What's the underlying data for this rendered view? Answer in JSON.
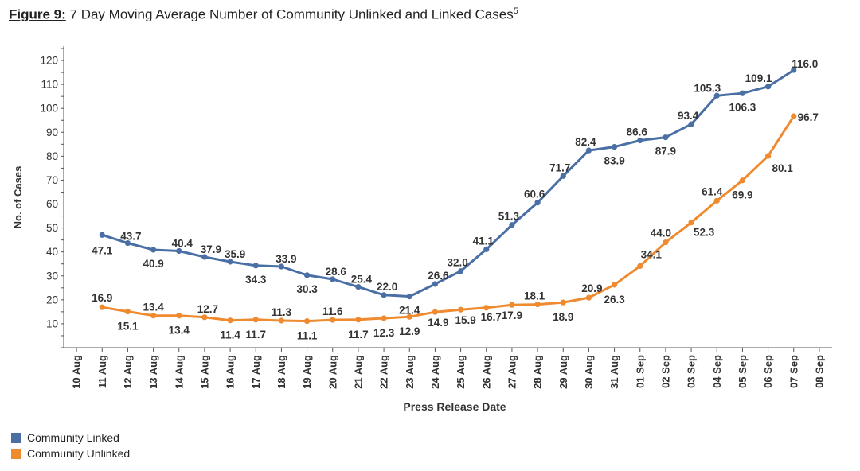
{
  "figure": {
    "label": "Figure 9:",
    "title": " 7 Day Moving Average Number of Community Unlinked and Linked Cases",
    "footnote": "5"
  },
  "chart_data": {
    "type": "line",
    "title": "7 Day Moving Average Number of Community Unlinked and Linked Cases",
    "xlabel": "Press Release Date",
    "ylabel": "No. of Cases",
    "categories": [
      "10 Aug",
      "11 Aug",
      "12 Aug",
      "13 Aug",
      "14 Aug",
      "15 Aug",
      "16 Aug",
      "17 Aug",
      "18 Aug",
      "19 Aug",
      "20 Aug",
      "21 Aug",
      "22 Aug",
      "23 Aug",
      "24 Aug",
      "25 Aug",
      "26 Aug",
      "27 Aug",
      "28 Aug",
      "29 Aug",
      "30 Aug",
      "31 Aug",
      "01 Sep",
      "02 Sep",
      "03 Sep",
      "04 Sep",
      "05 Sep",
      "06 Sep",
      "07 Sep",
      "08 Sep"
    ],
    "yticks": [
      10,
      20,
      30,
      40,
      50,
      60,
      70,
      80,
      90,
      100,
      110,
      120
    ],
    "ylim": [
      0,
      126
    ],
    "grid": false,
    "legend_position": "bottom-left",
    "series": [
      {
        "name": "Community Linked",
        "color": "#4a6fa5",
        "values": [
          null,
          47.1,
          43.7,
          40.9,
          40.4,
          37.9,
          35.9,
          34.3,
          33.9,
          30.3,
          28.6,
          25.4,
          22.0,
          21.4,
          26.6,
          32.0,
          41.1,
          51.3,
          60.6,
          71.7,
          82.4,
          83.9,
          86.6,
          87.9,
          93.4,
          105.3,
          106.3,
          109.1,
          116.0,
          null
        ],
        "labels": [
          null,
          "47.1",
          "43.7",
          "40.9",
          "40.4",
          "37.9",
          "35.9",
          "34.3",
          "33.9",
          "30.3",
          "28.6",
          "25.4",
          "22.0",
          "21.4",
          "26.6",
          "32.0",
          "41.1",
          "51.3",
          "60.6",
          "71.7",
          "82.4",
          "83.9",
          "86.6",
          "87.9",
          "93.4",
          "105.3",
          "106.3",
          "109.1",
          "116.0",
          null
        ]
      },
      {
        "name": "Community Unlinked",
        "color": "#ef8a2f",
        "values": [
          null,
          16.9,
          15.1,
          13.4,
          13.4,
          12.7,
          11.4,
          11.7,
          11.3,
          11.1,
          11.6,
          11.7,
          12.3,
          12.9,
          14.9,
          15.9,
          16.7,
          17.9,
          18.1,
          18.9,
          20.9,
          26.3,
          34.1,
          44.0,
          52.3,
          61.4,
          69.9,
          80.1,
          96.7,
          null
        ],
        "labels": [
          null,
          "16.9",
          "15.1",
          "13.4",
          "13.4",
          "12.7",
          "11.4",
          "11.7",
          "11.3",
          "11.1",
          "11.6",
          "11.7",
          "12.3",
          "12.9",
          "14.9",
          "15.9",
          "16.7",
          "17.9",
          "18.1",
          "18.9",
          "20.9",
          "26.3",
          "34.1",
          "44.0",
          "52.3",
          "61.4",
          "69.9",
          "80.1",
          "96.7",
          null
        ]
      }
    ]
  },
  "legend": {
    "items": [
      {
        "label": "Community Linked",
        "color": "#4a6fa5"
      },
      {
        "label": "Community Unlinked",
        "color": "#ef8a2f"
      }
    ]
  }
}
